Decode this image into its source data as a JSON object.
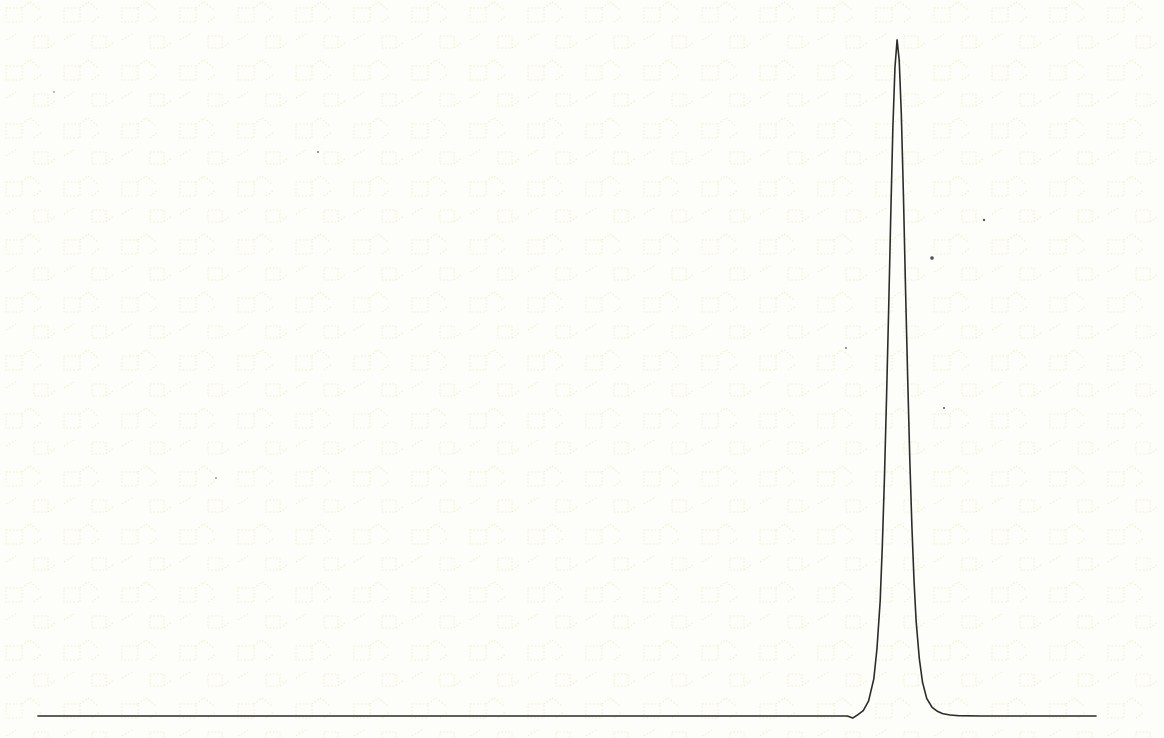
{
  "paper": {
    "background_color": "#fdfdf9",
    "watermark_color": "#f1eecb"
  },
  "chart_data": {
    "type": "line",
    "title": "",
    "xlabel": "",
    "ylabel": "",
    "grid": false,
    "legend": "none",
    "xlim": [
      0,
      1000
    ],
    "ylim": [
      0,
      100
    ],
    "series": [
      {
        "color": "#2b2b2b",
        "x": [
          0,
          765,
          770,
          775,
          780,
          785,
          790,
          793,
          796,
          798,
          800,
          802,
          804,
          806,
          808,
          810,
          812,
          814,
          816,
          818,
          820,
          822,
          824,
          826,
          828,
          830,
          833,
          836,
          840,
          845,
          850,
          855,
          862,
          870,
          880,
          890,
          1000
        ],
        "y": [
          0,
          0,
          -0.3,
          0.2,
          0.8,
          2.2,
          5.5,
          10,
          17,
          25,
          35,
          47,
          60,
          74,
          87,
          96,
          100,
          97,
          89,
          77,
          63,
          50,
          38,
          28,
          20,
          14,
          8.5,
          5,
          2.6,
          1.3,
          0.7,
          0.35,
          0.15,
          0.05,
          0.02,
          0,
          0
        ]
      }
    ]
  }
}
